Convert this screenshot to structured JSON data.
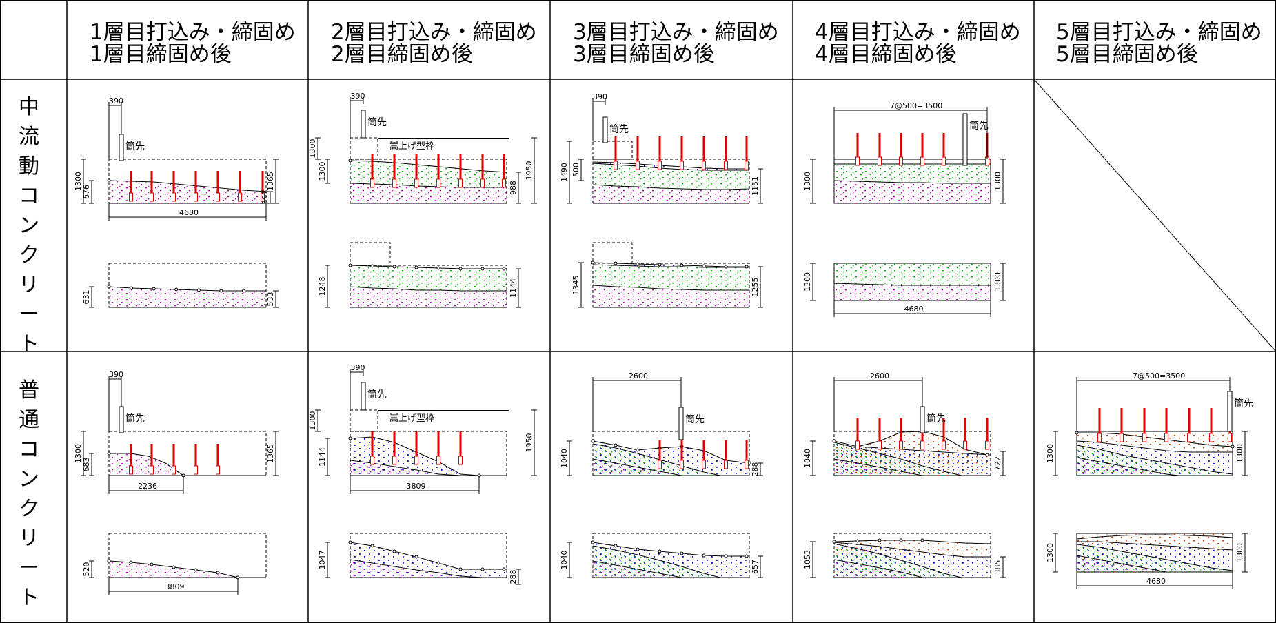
{
  "columns": [
    {
      "line1": "1層目打込み・締固め",
      "line2": "1層目締固め後"
    },
    {
      "line1": "2層目打込み・締固め",
      "line2": "2層目締固め後"
    },
    {
      "line1": "3層目打込み・締固め",
      "line2": "3層目締固め後"
    },
    {
      "line1": "4層目打込み・締固め",
      "line2": "4層目締固め後"
    },
    {
      "line1": "5層目打込み・締固め",
      "line2": "5層目締固め後"
    }
  ],
  "rows": [
    {
      "label": "中流動コンクリート",
      "chars": [
        "中",
        "流",
        "動",
        "コ",
        "ン",
        "ク",
        "リ",
        "ー",
        "ト"
      ]
    },
    {
      "label": "普通コンクリート",
      "chars": [
        "普",
        "通",
        "コ",
        "ン",
        "ク",
        "リ",
        "ー",
        "ト"
      ]
    }
  ],
  "labels": {
    "nozzle": "筒先",
    "raised_form": "嵩上げ型枠"
  },
  "colors": {
    "layer1": "#d000d0",
    "layer2": "#00c000",
    "layer3": "#0000d0",
    "layer4": "#e04000",
    "vibrator": "#e00000",
    "line": "#000000"
  },
  "dims": {
    "r1c1": {
      "w390": "390",
      "h1300": "1300",
      "h676": "676",
      "h1365": "1365",
      "h397": "397",
      "w4680": "4680",
      "h631": "631",
      "h533": "533"
    },
    "r1c2": {
      "w390": "390",
      "h1300a": "1300",
      "h1300b": "1300",
      "h1950": "1950",
      "h988": "988",
      "h1248": "1248",
      "h1144": "1144"
    },
    "r1c3": {
      "w390": "390",
      "h1490": "1490",
      "h500": "500",
      "h1151": "1151",
      "h1345": "1345",
      "h1255": "1255"
    },
    "r1c4": {
      "w3500": "7@500=3500",
      "h1300a": "1300",
      "h1300b": "1300",
      "h1300c": "1300",
      "h1300d": "1300",
      "w4680": "4680"
    },
    "r2c1": {
      "w390": "390",
      "h1300": "1300",
      "h683": "683",
      "h1365": "1365",
      "w2236": "2236",
      "h520": "520",
      "w3809": "3809"
    },
    "r2c2": {
      "w390": "390",
      "h1300": "1300",
      "h1144": "1144",
      "h1950": "1950",
      "w3809": "3809",
      "h1047": "1047",
      "h288": "288"
    },
    "r2c3": {
      "w2600": "2600",
      "h1040a": "1040",
      "h288": "288",
      "h1040b": "1040",
      "h657": "657"
    },
    "r2c4": {
      "w2600": "2600",
      "h1040": "1040",
      "h722": "722",
      "h1053": "1053",
      "h385": "385"
    },
    "r2c5": {
      "w3500": "7@500=3500",
      "h1300a": "1300",
      "h1300b": "1300",
      "h1300c": "1300",
      "h1300d": "1300",
      "w4680": "4680"
    }
  }
}
